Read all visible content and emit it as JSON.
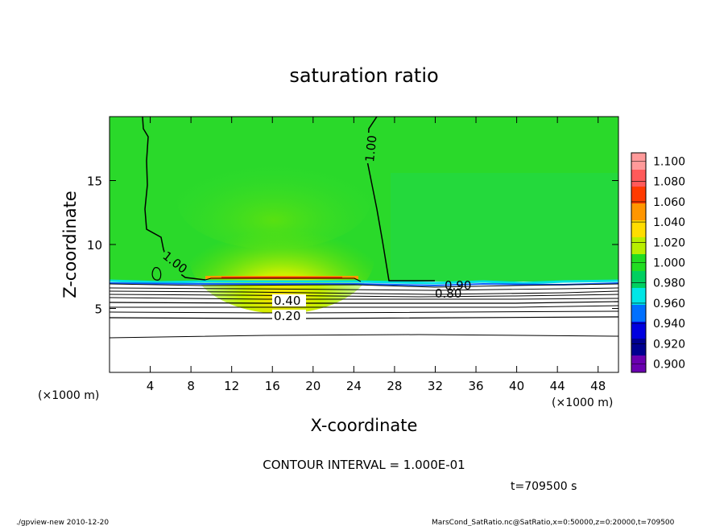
{
  "chart_data": {
    "type": "contour",
    "title": "saturation ratio",
    "xlabel": "X-coordinate",
    "ylabel": "Z-coordinate",
    "x_unit_label": "(×1000 m)",
    "y_unit_label": "(×1000 m)",
    "xlim": [
      0,
      50
    ],
    "ylim": [
      0,
      20
    ],
    "x_ticks": [
      4,
      8,
      12,
      16,
      20,
      24,
      28,
      32,
      36,
      40,
      44,
      48
    ],
    "y_ticks": [
      5,
      10,
      15
    ],
    "contour_labels": [
      {
        "text": "1.00",
        "x": 26.2,
        "z": 18.2
      },
      {
        "text": "1.00",
        "x": 6.5,
        "z": 8.2
      },
      {
        "text": "0.90",
        "x": 34.2,
        "z": 6.6
      },
      {
        "text": "0.80",
        "x": 33.8,
        "z": 6.1
      },
      {
        "text": "0.40",
        "x": 17.6,
        "z": 5.5
      },
      {
        "text": "0.20",
        "x": 17.6,
        "z": 4.3
      }
    ],
    "colorbar": {
      "levels": [
        "1.100",
        "1.080",
        "1.060",
        "1.040",
        "1.020",
        "1.000",
        "0.980",
        "0.960",
        "0.940",
        "0.920",
        "0.900"
      ],
      "colors": [
        "#ff9a9a",
        "#ff5a5a",
        "#ff3a00",
        "#ff9600",
        "#ffdd00",
        "#b9ee00",
        "#22dd22",
        "#00d060",
        "#00e6e6",
        "#0070ff",
        "#0000e0",
        "#000090",
        "#6a00b0"
      ]
    },
    "contour_interval": "CONTOUR INTERVAL = 1.000E-01",
    "time_label": "t=709500 s"
  },
  "footer": {
    "left": "./gpview-new  2010-12-20",
    "right": "MarsCond_SatRatio.nc@SatRatio,x=0:50000,z=0:20000,t=709500"
  }
}
